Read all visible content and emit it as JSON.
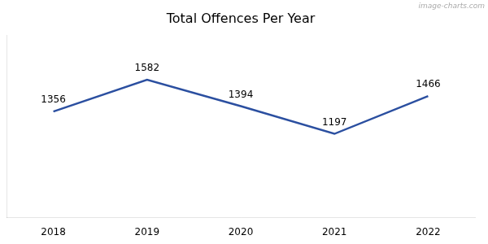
{
  "chart_data": {
    "type": "line",
    "title": "Total Offences Per Year",
    "x": [
      2018,
      2019,
      2020,
      2021,
      2022
    ],
    "values": [
      1356,
      1582,
      1394,
      1197,
      1466
    ],
    "color": "#2b4fa0",
    "xlim": [
      2017.5,
      2022.5
    ],
    "xticks": [
      2018,
      2019,
      2020,
      2021,
      2022
    ],
    "ylim": [
      600,
      1900
    ],
    "tick_labels": "x",
    "grid": false,
    "data_labels": true,
    "annotations": [
      "image-charts.com"
    ]
  }
}
